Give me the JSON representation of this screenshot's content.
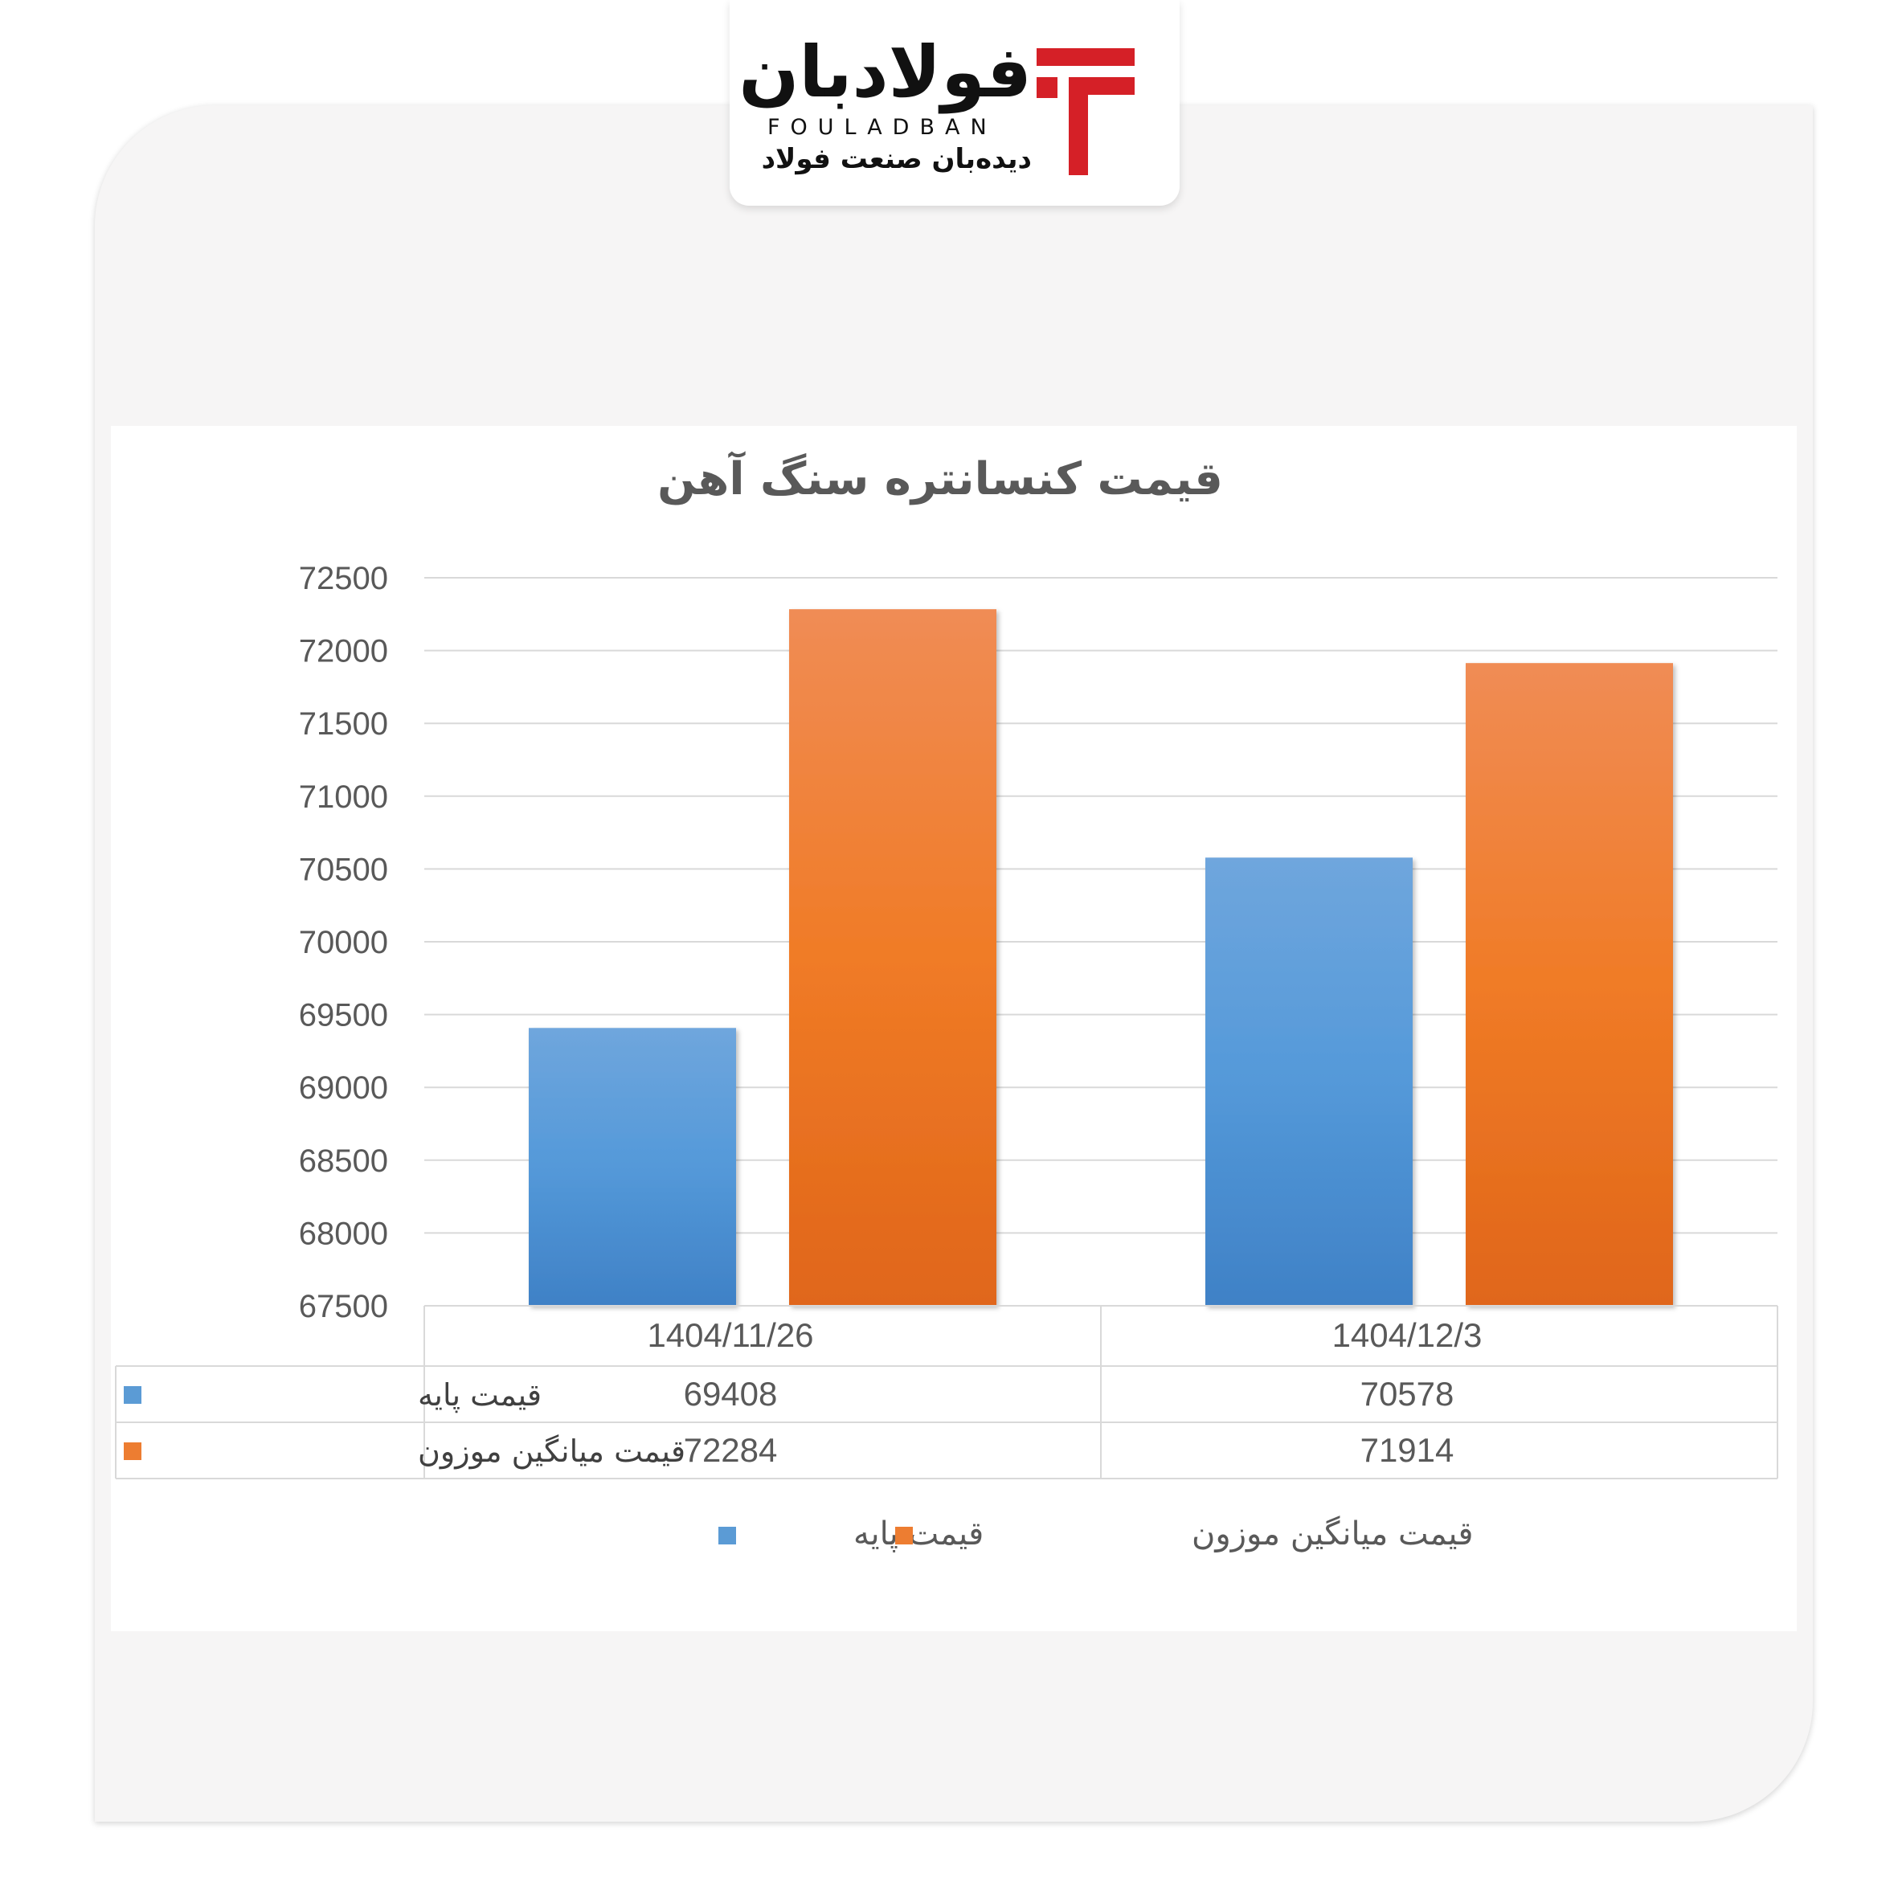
{
  "brand": {
    "name_fa": "فولادبان",
    "name_en": "FOULADBAN",
    "tagline": "دیده‌بان صنعت فولاد",
    "colors": {
      "red": "#d52027",
      "black": "#111111"
    }
  },
  "chart_data": {
    "type": "bar",
    "title": "قیمت کنسانتره سنگ آهن",
    "categories": [
      "1404/11/26",
      "1404/12/3"
    ],
    "series": [
      {
        "name": "قیمت پایه",
        "values": [
          69408,
          70578
        ],
        "color": "#5b9bd5"
      },
      {
        "name": "قیمت میانگین موزون",
        "values": [
          72284,
          71914
        ],
        "color": "#ed7d31"
      }
    ],
    "ylim": [
      67500,
      72500
    ],
    "yticks": [
      67500,
      68000,
      68500,
      69000,
      69500,
      70000,
      70500,
      71000,
      71500,
      72000,
      72500
    ],
    "grid": true,
    "data_table": true,
    "legend": "bottom"
  }
}
